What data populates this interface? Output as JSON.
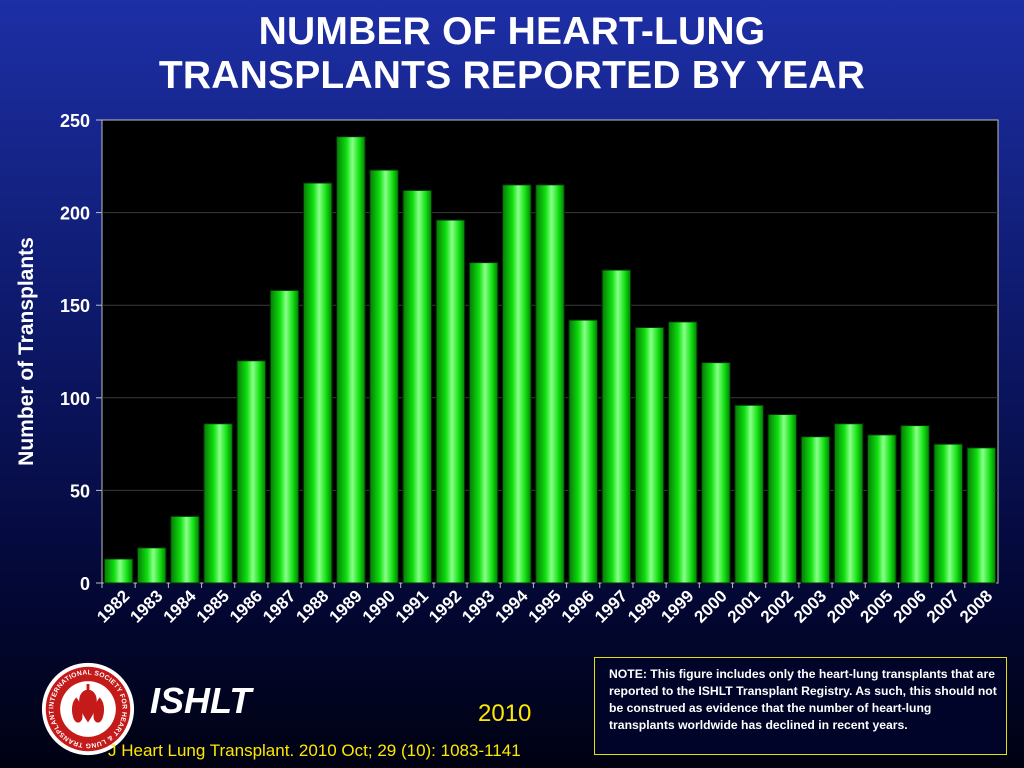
{
  "slide": {
    "title_line1": "NUMBER OF HEART-LUNG",
    "title_line2": "TRANSPLANTS REPORTED BY YEAR",
    "note": "NOTE: This figure includes only the heart-lung transplants that are reported to the ISHLT Transplant Registry.  As such, this should not be construed as evidence that the number of heart-lung transplants worldwide has declined in recent years.",
    "org_name": "ISHLT",
    "logo_text": "INTERNATIONAL SOCIETY FOR HEART & LUNG TRANSPLANTATION",
    "year": "2010",
    "citation": "J Heart Lung Transplant. 2010 Oct; 29 (10): 1083-1141"
  },
  "colors": {
    "bar": "#10e010",
    "bar_dark": "#067a06",
    "bar_light": "#8aff8a",
    "plot_bg": "#000000",
    "gridline": "#3a3a3a",
    "text": "#ffffff",
    "accent_yellow": "#ffe800"
  },
  "chart_data": {
    "type": "bar",
    "title": "NUMBER OF HEART-LUNG TRANSPLANTS REPORTED BY YEAR",
    "xlabel": "",
    "ylabel": "Number of Transplants",
    "ylim": [
      0,
      250
    ],
    "yticks": [
      0,
      50,
      100,
      150,
      200,
      250
    ],
    "grid": true,
    "categories": [
      "1982",
      "1983",
      "1984",
      "1985",
      "1986",
      "1987",
      "1988",
      "1989",
      "1990",
      "1991",
      "1992",
      "1993",
      "1994",
      "1995",
      "1996",
      "1997",
      "1998",
      "1999",
      "2000",
      "2001",
      "2002",
      "2003",
      "2004",
      "2005",
      "2006",
      "2007",
      "2008"
    ],
    "values": [
      13,
      19,
      36,
      86,
      120,
      158,
      216,
      241,
      223,
      212,
      196,
      173,
      215,
      215,
      142,
      169,
      138,
      141,
      119,
      96,
      91,
      79,
      86,
      80,
      85,
      75,
      73
    ]
  }
}
